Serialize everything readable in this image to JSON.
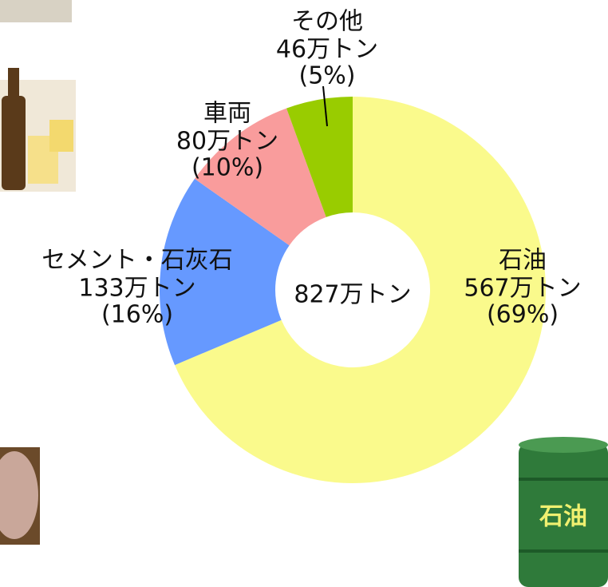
{
  "chart_data": {
    "type": "donut",
    "categories": [
      "石油",
      "セメント・石灰石",
      "車両",
      "その他"
    ],
    "values": [
      567,
      133,
      80,
      46
    ],
    "value_labels": [
      "567万トン",
      "133万トン",
      "80万トン",
      "46万トン"
    ],
    "percent_labels": [
      "(69%)",
      "(16%)",
      "(10%)",
      "(5%)"
    ],
    "colors": [
      "#fafa8c",
      "#6699ff",
      "#f99c9c",
      "#99cc00"
    ],
    "center_label": "827万トン"
  },
  "barrel_label": "石油"
}
